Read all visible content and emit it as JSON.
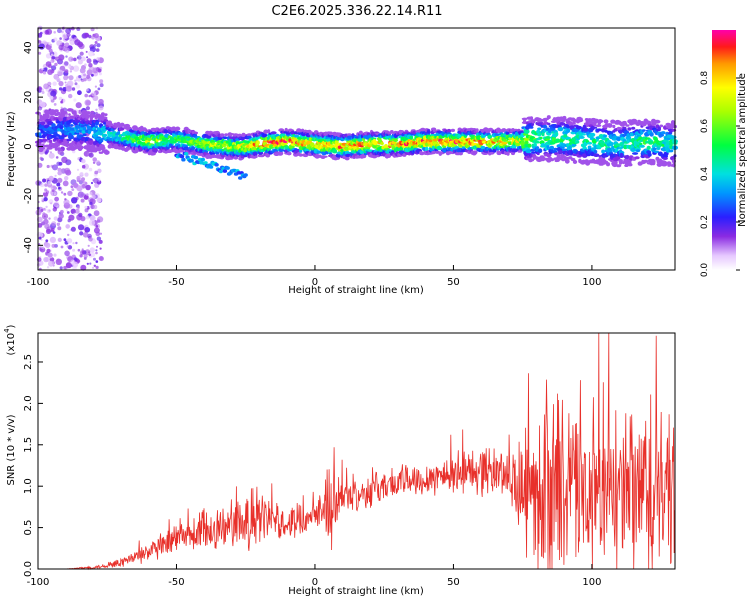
{
  "chart_data": [
    {
      "type": "heatmap",
      "title": "C2E6.2025.336.22.14.R11",
      "xlabel": "Height of straight line (km)",
      "ylabel": "Frequency (Hz)",
      "xlim": [
        -100,
        130
      ],
      "ylim": [
        -50,
        48
      ],
      "xticks": [
        -100,
        -50,
        0,
        50,
        100
      ],
      "xtick_labels": [
        "-100",
        "-50",
        "0",
        "50",
        "100"
      ],
      "yticks": [
        -40,
        -20,
        0,
        20,
        40
      ],
      "ytick_labels": [
        "-40",
        "-20",
        "0",
        "20",
        "40"
      ],
      "colorbar": {
        "label": "Normalized spectral amplitude",
        "range": [
          0,
          1
        ],
        "ticks": [
          0.0,
          0.2,
          0.4,
          0.6,
          0.8
        ],
        "tick_labels": [
          "0.0",
          "0.2",
          "0.4",
          "0.6",
          "0.8"
        ]
      },
      "ridge": {
        "description_points_x": [
          -100,
          -90,
          -80,
          -70,
          -60,
          -50,
          -40,
          -30,
          -25,
          -20,
          -10,
          0,
          10,
          20,
          30,
          40,
          50,
          60,
          70,
          80,
          90,
          100,
          110,
          120,
          130
        ],
        "center_freq_hz": [
          6,
          7,
          6,
          4,
          2,
          3,
          1,
          0,
          0,
          1,
          2,
          1,
          0,
          1,
          1,
          2,
          2,
          2,
          2,
          3,
          3,
          2,
          1,
          2,
          1
        ],
        "peak_amplitude": [
          0.3,
          0.35,
          0.4,
          0.5,
          0.75,
          0.6,
          0.7,
          0.75,
          0.8,
          0.95,
          0.95,
          0.9,
          0.95,
          0.9,
          0.95,
          0.95,
          0.95,
          0.9,
          0.85,
          0.6,
          0.55,
          0.5,
          0.5,
          0.55,
          0.5
        ]
      },
      "scatter_region_x": [
        -100,
        -77
      ]
    },
    {
      "type": "line",
      "xlabel": "Height of straight line (km)",
      "ylabel": "SNR (10 * v/v)",
      "y_multiplier_label": "(x10",
      "y_multiplier_exp": "4",
      "y_multiplier_close": ")",
      "xlim": [
        -100,
        130
      ],
      "ylim": [
        0,
        2.85
      ],
      "xticks": [
        -100,
        -50,
        0,
        50,
        100
      ],
      "xtick_labels": [
        "-100",
        "-50",
        "0",
        "50",
        "100"
      ],
      "yticks": [
        0.0,
        0.5,
        1.0,
        1.5,
        2.0,
        2.5
      ],
      "ytick_labels": [
        "0.0",
        "0.5",
        "1.0",
        "1.5",
        "2.0",
        "2.5"
      ],
      "series": [
        {
          "name": "SNR",
          "color": "#e8302a",
          "envelope_x": [
            -100,
            -90,
            -80,
            -75,
            -70,
            -60,
            -50,
            -45,
            -40,
            -35,
            -30,
            -25,
            -20,
            -15,
            -10,
            -5,
            0,
            3,
            5,
            10,
            20,
            30,
            40,
            50,
            60,
            70,
            75,
            80,
            85,
            90,
            100,
            110,
            120,
            130
          ],
          "mean_y": [
            0.0,
            0.0,
            0.02,
            0.04,
            0.08,
            0.2,
            0.35,
            0.4,
            0.45,
            0.5,
            0.5,
            0.55,
            0.6,
            0.6,
            0.55,
            0.6,
            0.7,
            0.75,
            0.8,
            0.85,
            0.95,
            1.05,
            1.1,
            1.15,
            1.2,
            1.15,
            0.9,
            0.9,
            0.95,
            0.95,
            0.9,
            0.85,
            0.9,
            0.85
          ],
          "spread_y": [
            0.0,
            0.0,
            0.02,
            0.03,
            0.06,
            0.12,
            0.2,
            0.2,
            0.3,
            0.3,
            0.25,
            0.35,
            0.4,
            0.2,
            0.2,
            0.2,
            0.15,
            0.25,
            0.6,
            0.2,
            0.2,
            0.2,
            0.2,
            0.25,
            0.3,
            0.3,
            0.7,
            0.8,
            1.4,
            1.0,
            0.9,
            0.9,
            1.2,
            0.8
          ]
        }
      ]
    }
  ]
}
